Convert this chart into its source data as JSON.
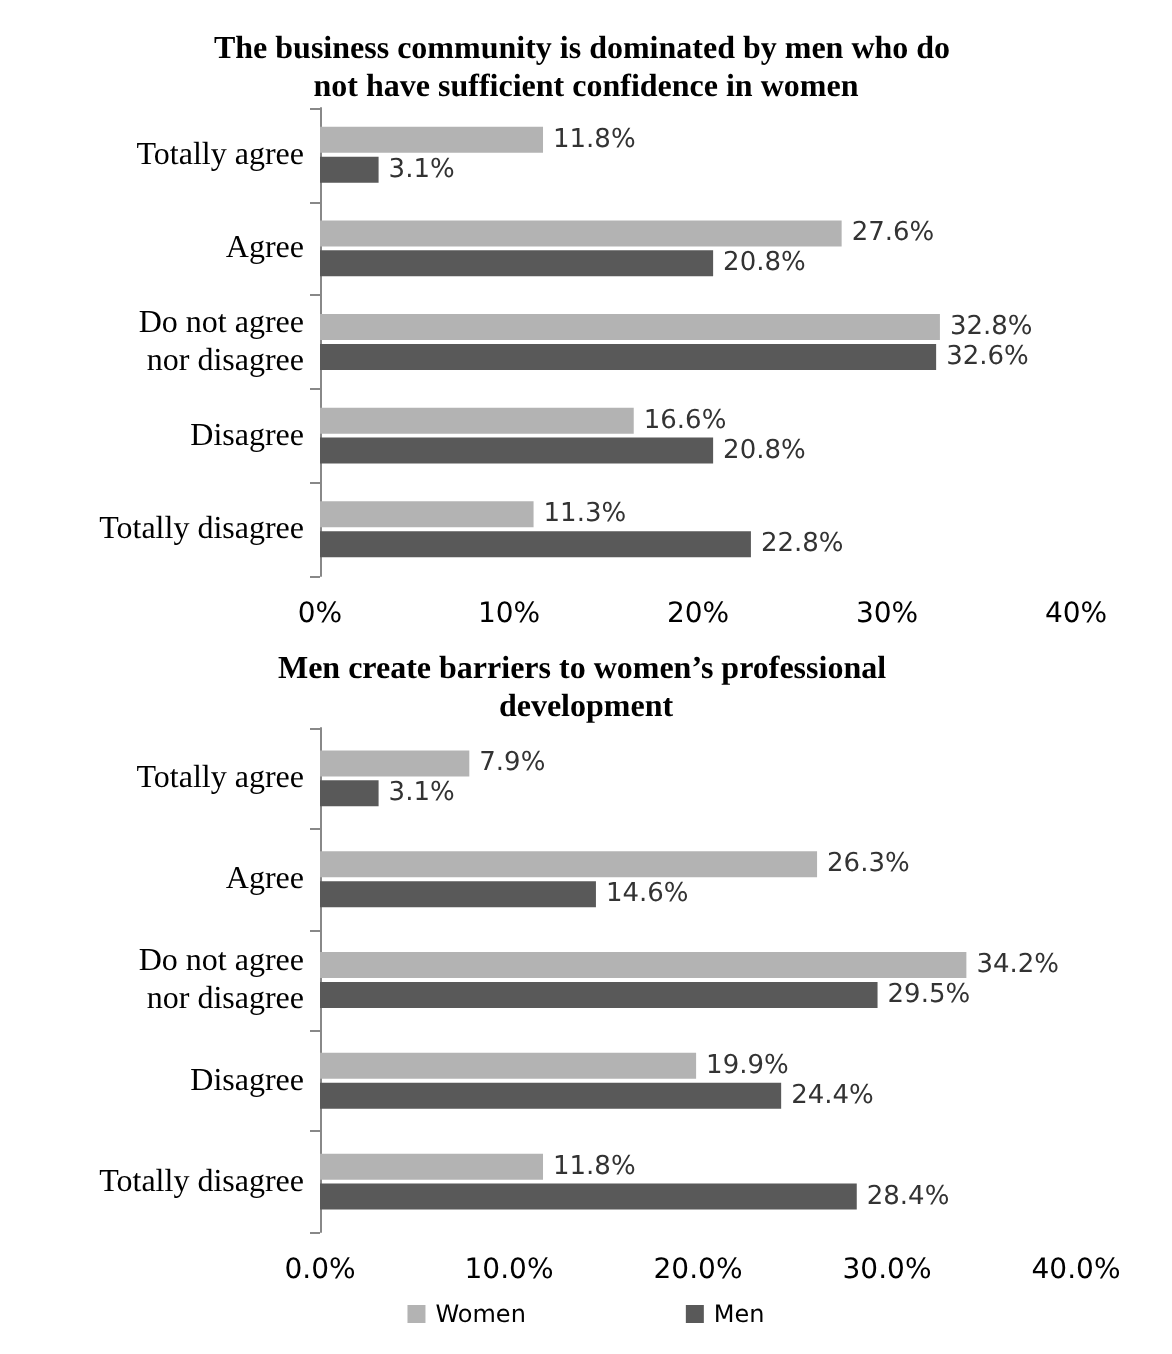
{
  "chart_data": [
    {
      "type": "bar",
      "orientation": "horizontal",
      "title": "The business community is dominated by men who do not have sufficient confidence in women",
      "categories": [
        "Totally agree",
        "Agree",
        "Do not agree nor disagree",
        "Disagree",
        "Totally disagree"
      ],
      "series": [
        {
          "color": "#b3b3b3",
          "values": [
            11.8,
            27.6,
            32.8,
            16.6,
            11.3
          ],
          "value_labels": [
            "11.8%",
            "27.6%",
            "32.8%",
            "16.6%",
            "11.3%"
          ]
        },
        {
          "color": "#595959",
          "values": [
            3.1,
            20.8,
            32.6,
            20.8,
            22.8
          ],
          "value_labels": [
            "3.1%",
            "20.8%",
            "32.6%",
            "20.8%",
            "22.8%"
          ]
        }
      ],
      "xlim": [
        0,
        40
      ],
      "xticks": [
        {
          "value": 0,
          "label": "0%"
        },
        {
          "value": 10,
          "label": "10%"
        },
        {
          "value": 20,
          "label": "20%"
        },
        {
          "value": 30,
          "label": "30%"
        },
        {
          "value": 40,
          "label": "40%"
        }
      ],
      "grid": false,
      "legend": false
    },
    {
      "type": "bar",
      "orientation": "horizontal",
      "title": "Men create barriers to women’s professional development",
      "categories": [
        "Totally agree",
        "Agree",
        "Do not agree nor disagree",
        "Disagree",
        "Totally disagree"
      ],
      "series": [
        {
          "name": "Women",
          "color": "#b3b3b3",
          "values": [
            7.9,
            26.3,
            34.2,
            19.9,
            11.8
          ],
          "value_labels": [
            "7.9%",
            "26.3%",
            "34.2%",
            "19.9%",
            "11.8%"
          ]
        },
        {
          "name": "Men",
          "color": "#595959",
          "values": [
            3.1,
            14.6,
            29.5,
            24.4,
            28.4
          ],
          "value_labels": [
            "3.1%",
            "14.6%",
            "29.5%",
            "24.4%",
            "28.4%"
          ]
        }
      ],
      "xlim": [
        0,
        40
      ],
      "xticks": [
        {
          "value": 0,
          "label": "0.0%"
        },
        {
          "value": 10,
          "label": "10.0%"
        },
        {
          "value": 20,
          "label": "20.0%"
        },
        {
          "value": 30,
          "label": "30.0%"
        },
        {
          "value": 40,
          "label": "40.0%"
        }
      ],
      "grid": false,
      "legend": "bottom"
    }
  ]
}
